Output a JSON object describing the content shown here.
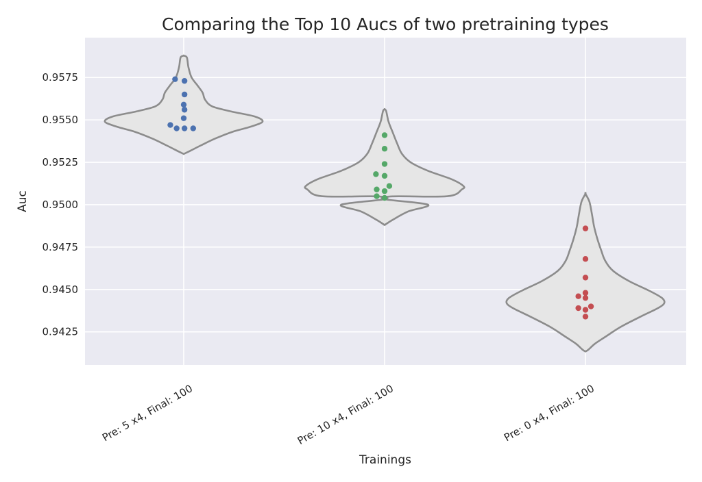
{
  "chart_data": {
    "type": "violin",
    "title": "Comparing the Top 10 Aucs of two pretraining types",
    "xlabel": "Trainings",
    "ylabel": "Auc",
    "ylim": [
      0.94055,
      0.95985
    ],
    "yticks": [
      "0.9425",
      "0.9450",
      "0.9475",
      "0.9500",
      "0.9525",
      "0.9550",
      "0.9575"
    ],
    "grid": true,
    "background": "#eaeaf2",
    "violin_fill": "#e6e6e6",
    "violin_edge": "#8c8c8c",
    "categories": [
      "Pre: 5 x4, Final: 100",
      "Pre: 10 x4, Final: 100",
      "Pre: 0 x4, Final: 100"
    ],
    "series": [
      {
        "color": "#4c72b0",
        "points": [
          [
            -0.11,
            0.9574
          ],
          [
            0.01,
            0.9573
          ],
          [
            0.01,
            0.9565
          ],
          [
            0.0,
            0.9559
          ],
          [
            0.01,
            0.9556
          ],
          [
            0.0,
            0.9551
          ],
          [
            -0.17,
            0.9547
          ],
          [
            -0.09,
            0.9545
          ],
          [
            0.01,
            0.9545
          ],
          [
            0.12,
            0.9545
          ]
        ],
        "violin": [
          [
            0.95299,
            0.0
          ],
          [
            0.95317,
            0.08
          ],
          [
            0.9535,
            0.22
          ],
          [
            0.9539,
            0.4
          ],
          [
            0.9543,
            0.62
          ],
          [
            0.9546,
            0.85
          ],
          [
            0.9549,
            1.0
          ],
          [
            0.9552,
            0.9
          ],
          [
            0.9555,
            0.6
          ],
          [
            0.9558,
            0.36
          ],
          [
            0.9562,
            0.27
          ],
          [
            0.9566,
            0.24
          ],
          [
            0.957,
            0.18
          ],
          [
            0.9575,
            0.1
          ],
          [
            0.9581,
            0.06
          ],
          [
            0.95868,
            0.04
          ],
          [
            0.95879,
            0.0
          ]
        ]
      },
      {
        "color": "#55a868",
        "points": [
          [
            0.0,
            0.9541
          ],
          [
            0.0,
            0.9533
          ],
          [
            0.0,
            0.9524
          ],
          [
            -0.11,
            0.9518
          ],
          [
            0.0,
            0.9517
          ],
          [
            0.06,
            0.9511
          ],
          [
            -0.1,
            0.9509
          ],
          [
            0.0,
            0.9508
          ],
          [
            -0.1,
            0.9505
          ],
          [
            0.0,
            0.9504
          ]
        ],
        "violin": [
          [
            0.95032,
            0.0
          ],
          [
            0.95049,
            0.1
          ],
          [
            0.9488,
            0.0
          ],
          [
            0.9491,
            0.1
          ],
          [
            0.9496,
            0.3
          ],
          [
            0.95,
            0.55
          ],
          [
            0.9505,
            0.8
          ],
          [
            0.9509,
            0.98
          ],
          [
            0.9511,
            1.0
          ],
          [
            0.9515,
            0.85
          ],
          [
            0.952,
            0.55
          ],
          [
            0.9525,
            0.33
          ],
          [
            0.953,
            0.22
          ],
          [
            0.9536,
            0.16
          ],
          [
            0.9543,
            0.1
          ],
          [
            0.9549,
            0.05
          ],
          [
            0.95552,
            0.02
          ],
          [
            0.95563,
            0.0
          ]
        ]
      },
      {
        "color": "#c44e52",
        "points": [
          [
            0.0,
            0.9486
          ],
          [
            0.0,
            0.9468
          ],
          [
            0.0,
            0.9457
          ],
          [
            0.0,
            0.9448
          ],
          [
            -0.09,
            0.9446
          ],
          [
            0.0,
            0.9445
          ],
          [
            0.07,
            0.944
          ],
          [
            -0.09,
            0.9439
          ],
          [
            0.0,
            0.9438
          ],
          [
            0.0,
            0.9434
          ]
        ],
        "violin": [
          [
            0.94134,
            0.0
          ],
          [
            0.94146,
            0.04
          ],
          [
            0.9418,
            0.12
          ],
          [
            0.9422,
            0.25
          ],
          [
            0.9428,
            0.45
          ],
          [
            0.9434,
            0.7
          ],
          [
            0.9439,
            0.92
          ],
          [
            0.9442,
            1.0
          ],
          [
            0.9445,
            0.97
          ],
          [
            0.9449,
            0.82
          ],
          [
            0.9455,
            0.55
          ],
          [
            0.9461,
            0.35
          ],
          [
            0.9467,
            0.25
          ],
          [
            0.9473,
            0.2
          ],
          [
            0.948,
            0.15
          ],
          [
            0.9487,
            0.11
          ],
          [
            0.9495,
            0.08
          ],
          [
            0.95018,
            0.05
          ],
          [
            0.95064,
            0.0
          ]
        ]
      }
    ]
  }
}
